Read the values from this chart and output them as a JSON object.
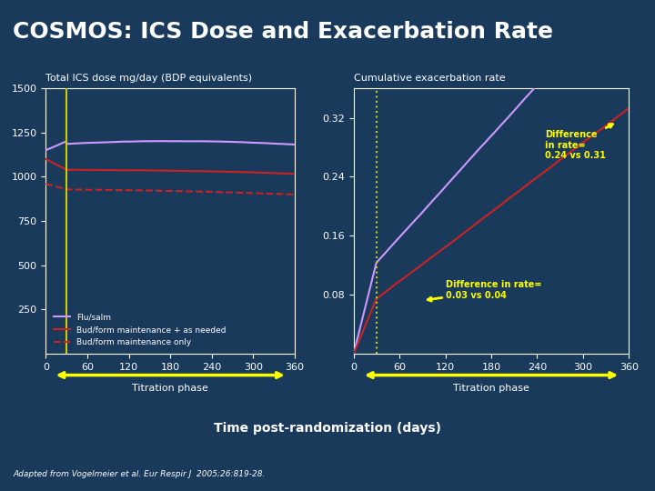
{
  "title": "COSMOS: ICS Dose and Exacerbation Rate",
  "title_fontsize": 18,
  "bg_color": "#1a3a5c",
  "plot_bg_color": "#1a3a5c",
  "title_bg_color": "#2a5080",
  "text_color": "#ffffff",
  "left_title": "Total ICS dose mg/day (BDP equivalents)",
  "right_title": "Cumulative exacerbation rate",
  "xlabel": "Time post-randomization (days)",
  "titration_label": "Titration phase",
  "left_ylim": [
    0,
    1500
  ],
  "left_yticks": [
    0,
    250,
    500,
    750,
    1000,
    1250,
    1500
  ],
  "right_ylim": [
    0,
    0.36
  ],
  "right_yticks": [
    0.08,
    0.16,
    0.24,
    0.32
  ],
  "xticks": [
    0,
    60,
    120,
    180,
    240,
    300,
    360
  ],
  "fluSalm_color": "#cc99ff",
  "budMain_color": "#cc2222",
  "budOnly_color": "#cc2222",
  "titration_vline_color": "#cccc00",
  "titration_vline_x": 30,
  "annotation_color": "#ffff00",
  "bottom_note": "Adapted from Vogelmeier et al. Eur Respir J  2005;26:819-28.",
  "diff_text1": "Difference\nin rate=\n0.24 vs 0.31",
  "diff_text2": "Difference in rate=\n0.03 vs 0.04"
}
